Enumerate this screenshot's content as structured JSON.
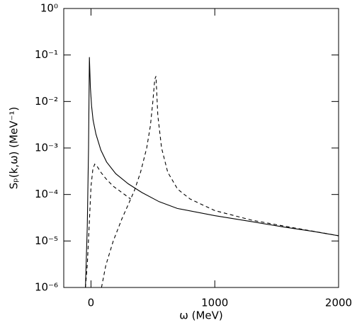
{
  "chart_data": {
    "type": "line",
    "xlabel": "ω (MeV)",
    "ylabel": "Sₚ(k,ω) (MeV⁻¹)",
    "xlim": [
      -220,
      2000
    ],
    "xticks": [
      0,
      1000,
      2000
    ],
    "ylim": [
      1e-06,
      1
    ],
    "ylog": true,
    "yticks": [
      {
        "value": 1e-06,
        "label": "10⁻⁶"
      },
      {
        "value": 1e-05,
        "label": "10⁻⁵"
      },
      {
        "value": 0.0001,
        "label": "10⁻⁴"
      },
      {
        "value": 0.001,
        "label": "10⁻³"
      },
      {
        "value": 0.01,
        "label": "10⁻²"
      },
      {
        "value": 0.1,
        "label": "10⁻¹"
      },
      {
        "value": 1,
        "label": "10⁰"
      }
    ],
    "series": [
      {
        "color": "#000000",
        "dash": "none",
        "x": [
          -45,
          -30,
          -20,
          -13,
          -5,
          5,
          17,
          40,
          80,
          126,
          200,
          300,
          411,
          550,
          697,
          1000,
          1300,
          1555,
          1800,
          2000
        ],
        "values": [
          1e-06,
          2e-05,
          0.001,
          0.09,
          0.02,
          0.008,
          0.004,
          0.002,
          0.0009,
          0.0005,
          0.00028,
          0.00017,
          0.00011,
          7e-05,
          5e-05,
          3.5e-05,
          2.6e-05,
          2e-05,
          1.6e-05,
          1.3e-05
        ]
      },
      {
        "color": "#000000",
        "dash": "5,4",
        "x": [
          -45,
          -30,
          -15,
          0,
          15,
          30,
          50,
          80,
          120,
          180,
          250,
          320,
          330,
          85,
          120,
          180,
          250,
          300,
          350,
          400,
          450,
          480,
          500,
          515,
          525,
          540,
          570,
          620,
          700,
          800,
          1000,
          1300,
          1600,
          2000
        ],
        "values": [
          1e-06,
          3e-06,
          2e-05,
          0.00015,
          0.00035,
          0.00045,
          0.0004,
          0.0003,
          0.00022,
          0.00015,
          0.00011,
          8e-05,
          null,
          1e-06,
          3e-06,
          1e-05,
          3e-05,
          6e-05,
          0.00012,
          0.0003,
          0.001,
          0.003,
          0.01,
          0.03,
          0.035,
          0.005,
          0.001,
          0.0003,
          0.00013,
          8e-05,
          4.5e-05,
          2.8e-05,
          2e-05,
          1.3e-05
        ]
      }
    ]
  }
}
